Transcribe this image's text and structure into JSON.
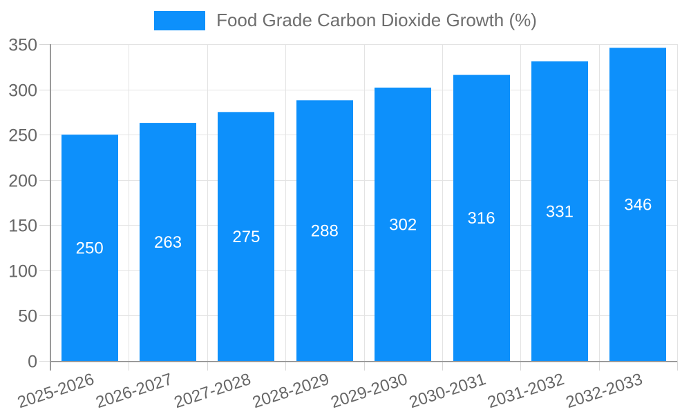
{
  "chart_data": {
    "type": "bar",
    "title": "",
    "series_name": "Food Grade Carbon Dioxide Growth (%)",
    "categories": [
      "2025-2026",
      "2026-2027",
      "2027-2028",
      "2028-2029",
      "2029-2030",
      "2030-2031",
      "2031-2032",
      "2032-2033"
    ],
    "values": [
      250,
      263,
      275,
      288,
      302,
      316,
      331,
      346
    ],
    "xlabel": "",
    "ylabel": "",
    "ylim": [
      0,
      350
    ],
    "yticks": [
      0,
      50,
      100,
      150,
      200,
      250,
      300,
      350
    ],
    "grid": true,
    "legend_position": "top-center",
    "value_label_position": "inside-middle",
    "x_tick_rotation_deg": -18,
    "colors": {
      "bar": "#0d90fb",
      "bar_value_label": "#ffffff",
      "axis_line": "#9a9a9a",
      "grid_line": "#e3e3e3",
      "tick_mark": "#d6d6d6",
      "tick_text": "#666666",
      "legend_text": "#6e6e6e",
      "background": "#ffffff"
    }
  }
}
